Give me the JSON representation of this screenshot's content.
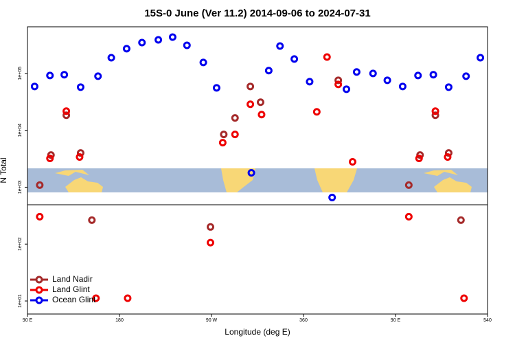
{
  "chart_data": {
    "type": "scatter",
    "title": "15S-0 June (Ver 11.2)   2014-09-06 to 2024-07-31",
    "x_label": "Longitude (deg E)",
    "y_label": "N Total",
    "log_y": true,
    "xlim": [
      90,
      540
    ],
    "xticks": [
      {
        "value": 90,
        "label": "90 E"
      },
      180,
      {
        "value": 270,
        "label": "90 W"
      },
      360,
      {
        "value": 450,
        "label": "90 E"
      },
      540
    ],
    "ylim": [
      5.9,
      660000
    ],
    "yticks": [
      {
        "value": 10,
        "label": "1e+01"
      },
      {
        "value": 100,
        "label": "1e+02"
      },
      {
        "value": 1000,
        "label": "1e+03"
      },
      {
        "value": 10000,
        "label": "1e+04"
      },
      {
        "value": 100000,
        "label": "1e+05"
      }
    ],
    "legend": "bottom-left",
    "series": [
      {
        "name": "Land Nadir",
        "color": "#a52a2a",
        "x": [
          102,
          113,
          128,
          142,
          153,
          269,
          282,
          293,
          308,
          318,
          394,
          463,
          474,
          489,
          502,
          514
        ],
        "values": [
          1090,
          3680,
          18400,
          4000,
          264,
          200,
          8470,
          16500,
          59000,
          31200,
          75800,
          1090,
          3680,
          18400,
          4000,
          264
        ]
      },
      {
        "name": "Land Glint",
        "color": "#ee0000",
        "x": [
          102,
          112,
          128,
          141,
          157,
          188,
          269,
          281,
          293,
          308,
          319,
          373,
          383,
          394,
          408,
          463,
          473,
          489,
          501,
          517
        ],
        "values": [
          303,
          3210,
          21700,
          3390,
          11.2,
          11.2,
          106,
          6070,
          8470,
          28700,
          18900,
          21100,
          194000,
          64100,
          2790,
          303,
          3210,
          21700,
          3390,
          11.2
        ]
      },
      {
        "name": "Ocean Glint",
        "color": "#0000ee",
        "x": [
          97,
          112,
          126,
          142,
          159,
          172,
          187,
          202,
          218,
          232,
          246,
          262,
          275,
          309,
          326,
          337,
          351,
          366,
          388,
          402,
          412,
          428,
          442,
          457,
          472,
          487,
          502,
          519,
          533
        ],
        "values": [
          59000,
          92000,
          95000,
          57400,
          89500,
          189000,
          272000,
          348000,
          389000,
          435000,
          312000,
          156000,
          55800,
          1790,
          112000,
          303000,
          179000,
          71600,
          659,
          52800,
          106000,
          100000,
          75800,
          59000,
          92000,
          95000,
          57400,
          89500,
          189000
        ]
      }
    ]
  }
}
